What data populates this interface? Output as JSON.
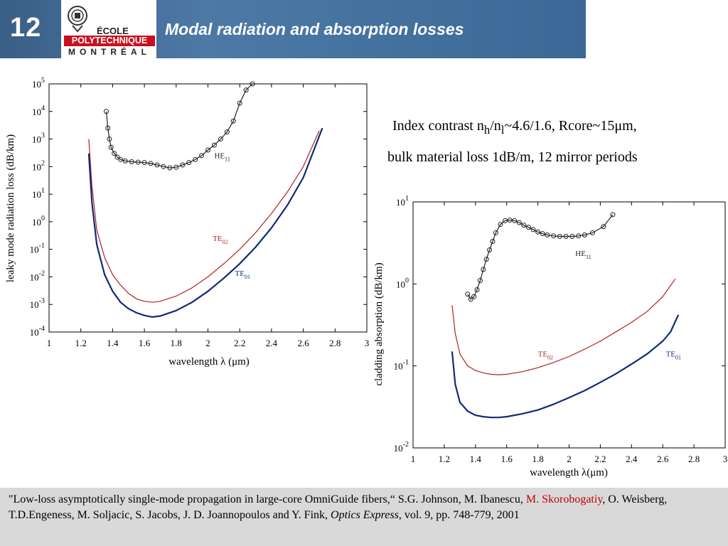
{
  "header": {
    "slide_number": "12",
    "title": "Modal radiation and absorption losses",
    "logo": {
      "line1": "ÉCOLE",
      "line2": "POLYTECHNIQUE",
      "line3": "MONTRÉAL"
    }
  },
  "info": {
    "line1": {
      "a": "Index contrast n",
      "sub_h": "h",
      "b": "/n",
      "sub_l": "l",
      "c": "~4.6/1.6, Rcore~15",
      "mu": "μ",
      "d": "m,"
    },
    "line2": "bulk material loss 1dB/m, 12 mirror periods"
  },
  "chart_data": [
    {
      "type": "line",
      "title": "",
      "xlabel": "wavelength λ (μm)",
      "ylabel": "leaky mode radiation loss (dB/km)",
      "yscale": "log",
      "xlim": [
        1,
        3
      ],
      "ylim_exp": [
        -4,
        5
      ],
      "xticks": [
        "1",
        "1.2",
        "1.4",
        "1.6",
        "1.8",
        "2",
        "2.2",
        "2.4",
        "2.6",
        "2.8",
        "3"
      ],
      "grid": false,
      "series": [
        {
          "name": "HE11",
          "color": "#222222",
          "markers": "circle",
          "x": [
            1.36,
            1.37,
            1.38,
            1.39,
            1.41,
            1.43,
            1.45,
            1.48,
            1.52,
            1.56,
            1.6,
            1.64,
            1.68,
            1.72,
            1.76,
            1.8,
            1.84,
            1.88,
            1.92,
            1.96,
            2.0,
            2.04,
            2.08,
            2.12,
            2.16,
            2.2,
            2.24,
            2.28
          ],
          "y": [
            10000,
            2500,
            1000,
            500,
            300,
            220,
            180,
            160,
            150,
            145,
            140,
            130,
            115,
            100,
            90,
            95,
            115,
            140,
            180,
            250,
            400,
            600,
            1000,
            1800,
            4500,
            20000,
            60000,
            100000
          ]
        },
        {
          "name": "TE02",
          "color": "#b22222",
          "markers": "none",
          "x": [
            1.25,
            1.27,
            1.3,
            1.35,
            1.4,
            1.45,
            1.5,
            1.55,
            1.6,
            1.65,
            1.7,
            1.8,
            1.9,
            2.0,
            2.1,
            2.2,
            2.3,
            2.4,
            2.5,
            2.6,
            2.7
          ],
          "y": [
            1000,
            20,
            0.5,
            0.05,
            0.012,
            0.005,
            0.0025,
            0.0016,
            0.0013,
            0.0012,
            0.0013,
            0.002,
            0.004,
            0.01,
            0.03,
            0.1,
            0.4,
            2,
            12,
            100,
            2000
          ]
        },
        {
          "name": "TE01",
          "color": "#102a78",
          "markers": "none",
          "x": [
            1.25,
            1.27,
            1.3,
            1.35,
            1.4,
            1.45,
            1.5,
            1.55,
            1.6,
            1.65,
            1.7,
            1.8,
            1.9,
            2.0,
            2.1,
            2.2,
            2.3,
            2.4,
            2.5,
            2.6,
            2.72
          ],
          "y": [
            300,
            5,
            0.15,
            0.012,
            0.003,
            0.0012,
            0.0007,
            0.0005,
            0.0004,
            0.00035,
            0.00038,
            0.0006,
            0.0012,
            0.003,
            0.009,
            0.03,
            0.12,
            0.6,
            4,
            40,
            2500
          ]
        }
      ],
      "annotations": [
        {
          "text": "HE",
          "sub": "11",
          "x": 2.04,
          "y": 200,
          "color": "#222222"
        },
        {
          "text": "TE",
          "sub": "02",
          "x": 2.03,
          "y": 0.2,
          "color": "#b22222"
        },
        {
          "text": "TE",
          "sub": "01",
          "x": 2.17,
          "y": 0.011,
          "color": "#102a78"
        }
      ]
    },
    {
      "type": "line",
      "title": "",
      "xlabel": "wavelength λ(μm)",
      "ylabel": "cladding absorption (dB/km)",
      "yscale": "log",
      "xlim": [
        1,
        3
      ],
      "ylim_exp": [
        -2,
        1
      ],
      "xticks": [
        "1",
        "1.2",
        "1.4",
        "1.6",
        "1.8",
        "2",
        "2.2",
        "2.4",
        "2.6",
        "2.8",
        "3"
      ],
      "grid": false,
      "series": [
        {
          "name": "HE11",
          "color": "#222222",
          "markers": "circle",
          "x": [
            1.35,
            1.37,
            1.39,
            1.41,
            1.43,
            1.45,
            1.47,
            1.49,
            1.51,
            1.53,
            1.56,
            1.59,
            1.62,
            1.65,
            1.68,
            1.71,
            1.74,
            1.77,
            1.8,
            1.83,
            1.86,
            1.9,
            1.94,
            1.98,
            2.02,
            2.06,
            2.1,
            2.15,
            2.22,
            2.28
          ],
          "y": [
            0.75,
            0.65,
            0.7,
            0.85,
            1.1,
            1.5,
            2.0,
            2.6,
            3.3,
            4.2,
            5.3,
            5.9,
            6.0,
            5.9,
            5.6,
            5.2,
            4.9,
            4.6,
            4.3,
            4.1,
            3.95,
            3.85,
            3.8,
            3.8,
            3.8,
            3.85,
            3.95,
            4.2,
            5.0,
            7.0
          ]
        },
        {
          "name": "TE02",
          "color": "#b22222",
          "markers": "none",
          "x": [
            1.25,
            1.27,
            1.3,
            1.35,
            1.4,
            1.45,
            1.5,
            1.55,
            1.6,
            1.7,
            1.8,
            1.9,
            2.0,
            2.1,
            2.2,
            2.3,
            2.4,
            2.5,
            2.6,
            2.68
          ],
          "y": [
            0.55,
            0.25,
            0.14,
            0.1,
            0.088,
            0.082,
            0.079,
            0.078,
            0.079,
            0.085,
            0.095,
            0.11,
            0.13,
            0.16,
            0.2,
            0.26,
            0.34,
            0.46,
            0.7,
            1.15
          ]
        },
        {
          "name": "TE01",
          "color": "#102a78",
          "markers": "none",
          "x": [
            1.25,
            1.27,
            1.3,
            1.35,
            1.4,
            1.45,
            1.5,
            1.55,
            1.6,
            1.7,
            1.8,
            1.9,
            2.0,
            2.1,
            2.2,
            2.3,
            2.4,
            2.5,
            2.6,
            2.65,
            2.7
          ],
          "y": [
            0.15,
            0.06,
            0.036,
            0.028,
            0.025,
            0.024,
            0.0235,
            0.0235,
            0.024,
            0.026,
            0.029,
            0.034,
            0.041,
            0.05,
            0.063,
            0.08,
            0.105,
            0.14,
            0.2,
            0.26,
            0.42
          ]
        }
      ],
      "annotations": [
        {
          "text": "HE",
          "sub": "11",
          "x": 2.04,
          "y": 2.2,
          "color": "#222222"
        },
        {
          "text": "TE",
          "sub": "02",
          "x": 1.8,
          "y": 0.13,
          "color": "#b22222"
        },
        {
          "text": "TE",
          "sub": "01",
          "x": 2.62,
          "y": 0.13,
          "color": "#102a78"
        }
      ]
    }
  ],
  "footer": {
    "part1": "\"Low-loss asymptotically single-mode propagation in large-core OmniGuide fibers,“  S.G. Johnson, M. Ibanescu, ",
    "red_name": "M. Skorobogatiy",
    "part2": ", O. Weisberg, T.D.Engeness, M. Soljacic, S. Jacobs, J. D. Joannopoulos and Y. Fink, ",
    "journal": "Optics Express",
    "part3": ", vol. 9, pp. 748-779, 2001"
  }
}
